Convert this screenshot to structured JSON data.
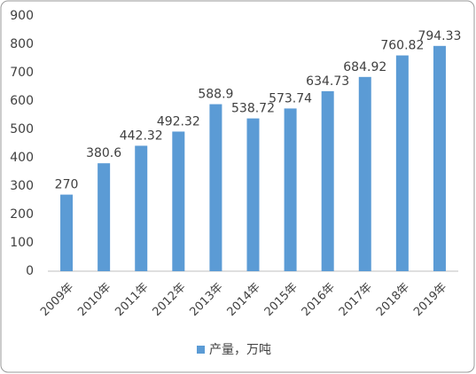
{
  "chart_data": {
    "type": "bar",
    "categories": [
      "2009年",
      "2010年",
      "2011年",
      "2012年",
      "2013年",
      "2014年",
      "2015年",
      "2016年",
      "2017年",
      "2018年",
      "2019年"
    ],
    "series": [
      {
        "name": "产量，万吨",
        "color": "#5b9bd5",
        "values": [
          270,
          380.6,
          442.32,
          492.32,
          588.9,
          538.72,
          573.74,
          634.73,
          684.92,
          760.82,
          794.33
        ]
      }
    ],
    "ylim": [
      0,
      900
    ],
    "yticks": [
      0,
      100,
      200,
      300,
      400,
      500,
      600,
      700,
      800,
      900
    ],
    "grid": false,
    "legend": "bottom"
  }
}
